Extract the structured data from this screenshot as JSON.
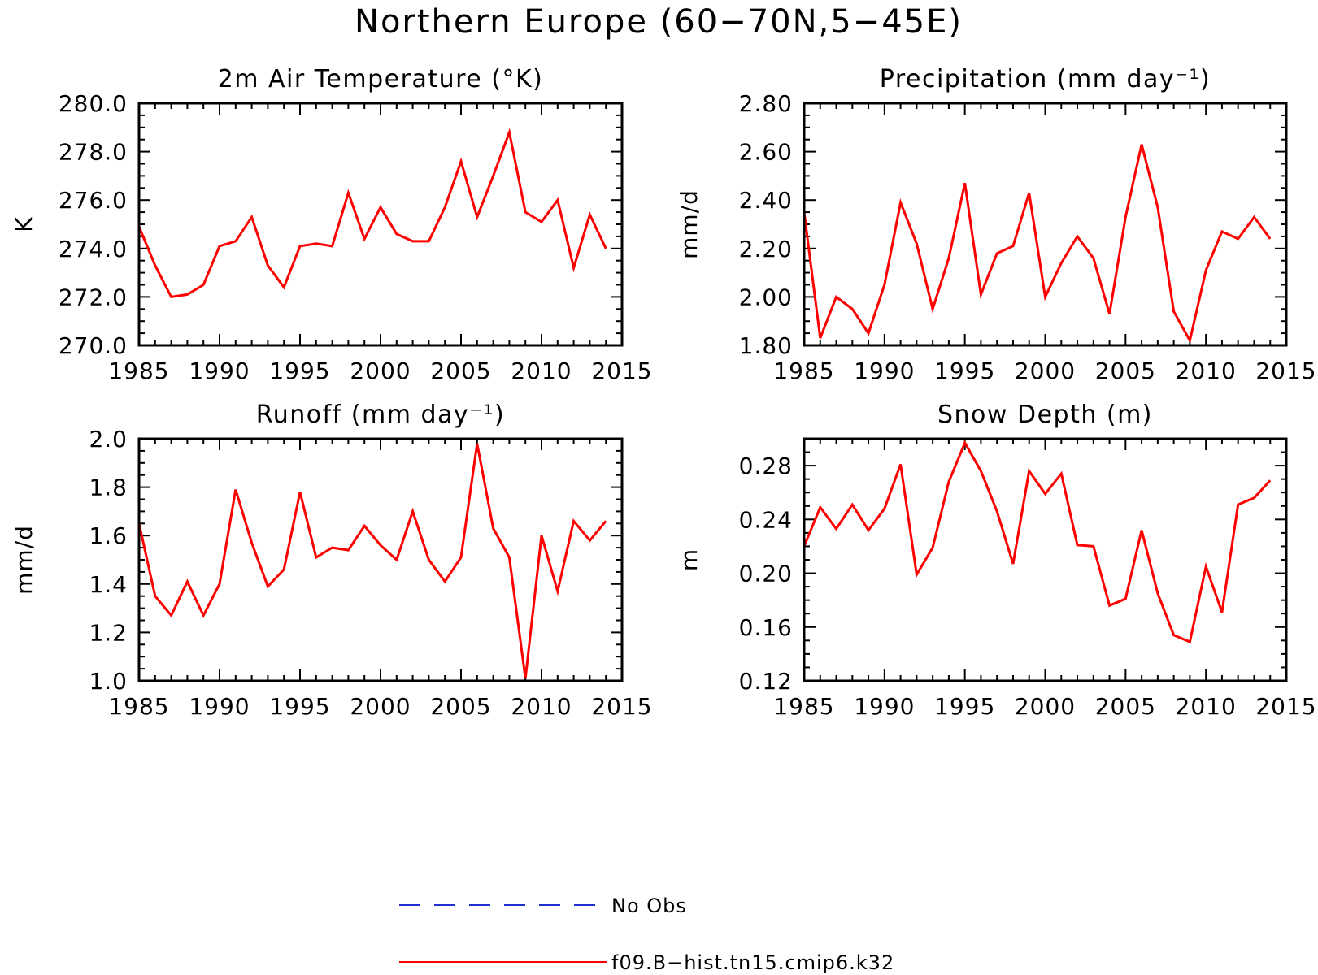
{
  "figure": {
    "title": "Northern Europe (60−70N,5−45E)"
  },
  "legend": {
    "items": [
      {
        "label": "No Obs",
        "color": "#2030d0",
        "style": "dashed"
      },
      {
        "label": "f09.B−hist.tn15.cmip6.k32",
        "color": "#ff0000",
        "style": "solid"
      }
    ]
  },
  "chart_data": [
    {
      "type": "line",
      "title": "2m Air Temperature (°K)",
      "ylabel": "K",
      "xlim": [
        1985,
        2015
      ],
      "ylim": [
        270.0,
        280.0
      ],
      "xticks": [
        1985,
        1990,
        1995,
        2000,
        2005,
        2010,
        2015
      ],
      "yticks": [
        "270.0",
        "272.0",
        "274.0",
        "276.0",
        "278.0",
        "280.0"
      ],
      "x": [
        1985,
        1986,
        1987,
        1988,
        1989,
        1990,
        1991,
        1992,
        1993,
        1994,
        1995,
        1996,
        1997,
        1998,
        1999,
        2000,
        2001,
        2002,
        2003,
        2004,
        2005,
        2006,
        2007,
        2008,
        2009,
        2010,
        2011,
        2012,
        2013,
        2014
      ],
      "series": [
        {
          "name": "f09.B−hist.tn15.cmip6.k32",
          "color": "#ff0000",
          "values": [
            274.9,
            273.3,
            272.0,
            272.1,
            272.5,
            274.1,
            274.3,
            275.3,
            273.3,
            272.4,
            274.1,
            274.2,
            274.1,
            276.3,
            274.4,
            275.7,
            274.6,
            274.3,
            274.3,
            275.7,
            277.6,
            275.3,
            277.0,
            278.8,
            275.5,
            275.1,
            276.0,
            273.2,
            275.4,
            274.0
          ]
        }
      ]
    },
    {
      "type": "line",
      "title": "Precipitation (mm day⁻¹)",
      "ylabel": "mm/d",
      "xlim": [
        1985,
        2015
      ],
      "ylim": [
        1.8,
        2.8
      ],
      "xticks": [
        1985,
        1990,
        1995,
        2000,
        2005,
        2010,
        2015
      ],
      "yticks": [
        "1.80",
        "2.00",
        "2.20",
        "2.40",
        "2.60",
        "2.80"
      ],
      "x": [
        1985,
        1986,
        1987,
        1988,
        1989,
        1990,
        1991,
        1992,
        1993,
        1994,
        1995,
        1996,
        1997,
        1998,
        1999,
        2000,
        2001,
        2002,
        2003,
        2004,
        2005,
        2006,
        2007,
        2008,
        2009,
        2010,
        2011,
        2012,
        2013,
        2014
      ],
      "series": [
        {
          "name": "f09.B−hist.tn15.cmip6.k32",
          "color": "#ff0000",
          "values": [
            2.35,
            1.83,
            2.0,
            1.95,
            1.85,
            2.05,
            2.39,
            2.22,
            1.95,
            2.16,
            2.47,
            2.01,
            2.18,
            2.21,
            2.43,
            2.0,
            2.14,
            2.25,
            2.16,
            1.93,
            2.33,
            2.63,
            2.37,
            1.94,
            1.82,
            2.11,
            2.27,
            2.24,
            2.33,
            2.24
          ]
        }
      ]
    },
    {
      "type": "line",
      "title": "Runoff (mm day⁻¹)",
      "ylabel": "mm/d",
      "xlim": [
        1985,
        2015
      ],
      "ylim": [
        1.0,
        2.0
      ],
      "xticks": [
        1985,
        1990,
        1995,
        2000,
        2005,
        2010,
        2015
      ],
      "yticks": [
        "1.0",
        "1.2",
        "1.4",
        "1.6",
        "1.8",
        "2.0"
      ],
      "x": [
        1985,
        1986,
        1987,
        1988,
        1989,
        1990,
        1991,
        1992,
        1993,
        1994,
        1995,
        1996,
        1997,
        1998,
        1999,
        2000,
        2001,
        2002,
        2003,
        2004,
        2005,
        2006,
        2007,
        2008,
        2009,
        2010,
        2011,
        2012,
        2013,
        2014
      ],
      "series": [
        {
          "name": "f09.B−hist.tn15.cmip6.k32",
          "color": "#ff0000",
          "values": [
            1.65,
            1.35,
            1.27,
            1.41,
            1.27,
            1.4,
            1.79,
            1.57,
            1.39,
            1.46,
            1.78,
            1.51,
            1.55,
            1.54,
            1.64,
            1.56,
            1.5,
            1.7,
            1.5,
            1.41,
            1.51,
            1.98,
            1.63,
            1.51,
            1.01,
            1.6,
            1.37,
            1.66,
            1.58,
            1.66
          ]
        }
      ]
    },
    {
      "type": "line",
      "title": "Snow Depth (m)",
      "ylabel": "m",
      "xlim": [
        1985,
        2015
      ],
      "ylim": [
        0.12,
        0.3
      ],
      "xticks": [
        1985,
        1990,
        1995,
        2000,
        2005,
        2010,
        2015
      ],
      "yticks": [
        "0.12",
        "0.16",
        "0.20",
        "0.24",
        "0.28"
      ],
      "x": [
        1985,
        1986,
        1987,
        1988,
        1989,
        1990,
        1991,
        1992,
        1993,
        1994,
        1995,
        1996,
        1997,
        1998,
        1999,
        2000,
        2001,
        2002,
        2003,
        2004,
        2005,
        2006,
        2007,
        2008,
        2009,
        2010,
        2011,
        2012,
        2013,
        2014
      ],
      "series": [
        {
          "name": "f09.B−hist.tn15.cmip6.k32",
          "color": "#ff0000",
          "values": [
            0.22,
            0.249,
            0.233,
            0.251,
            0.232,
            0.248,
            0.281,
            0.199,
            0.219,
            0.268,
            0.297,
            0.276,
            0.246,
            0.207,
            0.276,
            0.259,
            0.274,
            0.221,
            0.22,
            0.176,
            0.181,
            0.232,
            0.185,
            0.154,
            0.149,
            0.205,
            0.171,
            0.251,
            0.256,
            0.269
          ]
        }
      ]
    }
  ]
}
